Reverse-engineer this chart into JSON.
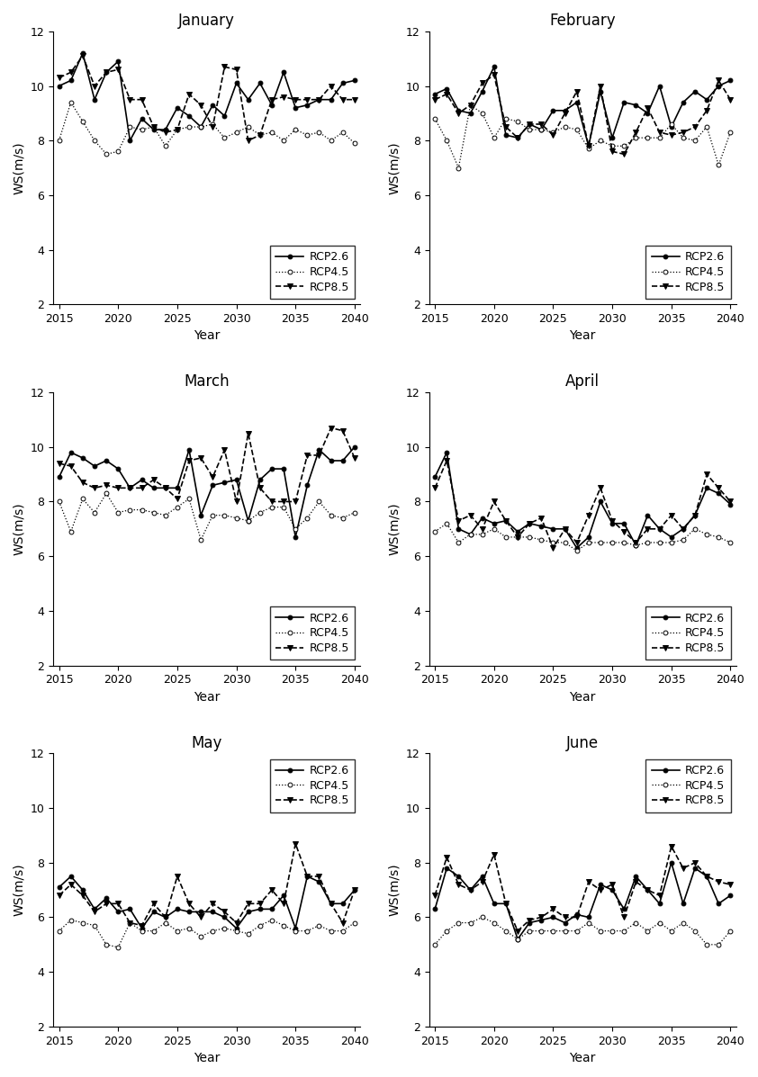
{
  "months": [
    "January",
    "February",
    "March",
    "April",
    "May",
    "June"
  ],
  "years": [
    2015,
    2016,
    2017,
    2018,
    2019,
    2020,
    2021,
    2022,
    2023,
    2024,
    2025,
    2026,
    2027,
    2028,
    2029,
    2030,
    2031,
    2032,
    2033,
    2034,
    2035,
    2036,
    2037,
    2038,
    2039,
    2040
  ],
  "data": {
    "January": {
      "RCP2.6": [
        10.0,
        10.2,
        11.2,
        9.5,
        10.5,
        10.9,
        8.0,
        8.8,
        8.4,
        8.4,
        9.2,
        8.9,
        8.5,
        9.3,
        8.9,
        10.1,
        9.5,
        10.1,
        9.3,
        10.5,
        9.2,
        9.3,
        9.5,
        9.5,
        10.1,
        10.2
      ],
      "RCP4.5": [
        8.0,
        9.4,
        8.7,
        8.0,
        7.5,
        7.6,
        8.5,
        8.4,
        8.5,
        7.8,
        8.4,
        8.5,
        8.5,
        8.6,
        8.1,
        8.3,
        8.5,
        8.2,
        8.3,
        8.0,
        8.4,
        8.2,
        8.3,
        8.0,
        8.3,
        7.9
      ],
      "RCP8.5": [
        10.3,
        10.5,
        11.1,
        10.0,
        10.5,
        10.6,
        9.5,
        9.5,
        8.5,
        8.3,
        8.4,
        9.7,
        9.3,
        8.5,
        10.7,
        10.6,
        8.0,
        8.2,
        9.5,
        9.6,
        9.5,
        9.5,
        9.5,
        10.0,
        9.5,
        9.5
      ]
    },
    "February": {
      "RCP2.6": [
        9.7,
        9.9,
        9.1,
        9.0,
        9.8,
        10.7,
        8.2,
        8.1,
        8.6,
        8.4,
        9.1,
        9.1,
        9.4,
        7.8,
        9.8,
        8.1,
        9.4,
        9.3,
        9.0,
        10.0,
        8.5,
        9.4,
        9.8,
        9.5,
        10.0,
        10.2
      ],
      "RCP4.5": [
        8.8,
        8.0,
        7.0,
        9.3,
        9.0,
        8.1,
        8.8,
        8.7,
        8.4,
        8.4,
        8.3,
        8.5,
        8.4,
        7.7,
        8.0,
        7.8,
        7.8,
        8.1,
        8.1,
        8.1,
        8.6,
        8.1,
        8.0,
        8.5,
        7.1,
        8.3
      ],
      "RCP8.5": [
        9.5,
        9.7,
        9.0,
        9.3,
        10.1,
        10.4,
        8.5,
        8.1,
        8.6,
        8.6,
        8.2,
        9.0,
        9.8,
        7.8,
        10.0,
        7.6,
        7.5,
        8.3,
        9.2,
        8.3,
        8.2,
        8.3,
        8.5,
        9.1,
        10.2,
        9.5
      ]
    },
    "March": {
      "RCP2.6": [
        8.9,
        9.8,
        9.6,
        9.3,
        9.5,
        9.2,
        8.5,
        8.8,
        8.5,
        8.5,
        8.5,
        9.9,
        7.5,
        8.6,
        8.7,
        8.8,
        7.3,
        8.8,
        9.2,
        9.2,
        6.7,
        8.6,
        9.9,
        9.5,
        9.5,
        10.0
      ],
      "RCP4.5": [
        8.0,
        6.9,
        8.1,
        7.6,
        8.3,
        7.6,
        7.7,
        7.7,
        7.6,
        7.5,
        7.8,
        8.1,
        6.6,
        7.5,
        7.5,
        7.4,
        7.3,
        7.6,
        7.8,
        7.8,
        7.0,
        7.4,
        8.0,
        7.5,
        7.4,
        7.6
      ],
      "RCP8.5": [
        9.4,
        9.3,
        8.7,
        8.5,
        8.6,
        8.5,
        8.5,
        8.5,
        8.8,
        8.5,
        8.1,
        9.5,
        9.6,
        8.9,
        9.9,
        8.0,
        10.5,
        8.5,
        8.0,
        8.0,
        8.0,
        9.7,
        9.7,
        10.7,
        10.6,
        9.6
      ]
    },
    "April": {
      "RCP2.6": [
        8.9,
        9.8,
        7.0,
        6.8,
        7.4,
        7.2,
        7.3,
        6.9,
        7.2,
        7.1,
        7.0,
        7.0,
        6.3,
        6.7,
        8.0,
        7.2,
        7.2,
        6.4,
        7.5,
        7.0,
        6.7,
        7.0,
        7.5,
        8.5,
        8.3,
        7.9
      ],
      "RCP4.5": [
        6.9,
        7.2,
        6.5,
        6.8,
        6.8,
        7.0,
        6.7,
        6.7,
        6.7,
        6.6,
        6.5,
        6.5,
        6.2,
        6.5,
        6.5,
        6.5,
        6.5,
        6.4,
        6.5,
        6.5,
        6.5,
        6.6,
        7.0,
        6.8,
        6.7,
        6.5
      ],
      "RCP8.5": [
        8.5,
        9.5,
        7.3,
        7.5,
        7.0,
        8.0,
        7.3,
        6.7,
        7.2,
        7.4,
        6.3,
        7.0,
        6.5,
        7.5,
        8.5,
        7.3,
        6.9,
        6.5,
        7.0,
        7.0,
        7.5,
        7.0,
        7.5,
        9.0,
        8.5,
        8.0
      ]
    },
    "May": {
      "RCP2.6": [
        7.1,
        7.5,
        7.0,
        6.3,
        6.7,
        6.2,
        6.3,
        5.6,
        6.2,
        6.0,
        6.3,
        6.2,
        6.2,
        6.2,
        6.0,
        5.6,
        6.2,
        6.3,
        6.3,
        6.8,
        5.6,
        7.5,
        7.3,
        6.5,
        6.5,
        7.0
      ],
      "RCP4.5": [
        5.5,
        5.9,
        5.8,
        5.7,
        5.0,
        4.9,
        5.8,
        5.5,
        5.5,
        5.8,
        5.5,
        5.6,
        5.3,
        5.5,
        5.6,
        5.5,
        5.4,
        5.7,
        5.9,
        5.7,
        5.5,
        5.5,
        5.7,
        5.5,
        5.5,
        5.8
      ],
      "RCP8.5": [
        6.8,
        7.2,
        6.8,
        6.2,
        6.5,
        6.5,
        5.8,
        5.7,
        6.5,
        6.0,
        7.5,
        6.5,
        6.0,
        6.5,
        6.2,
        5.8,
        6.5,
        6.5,
        7.0,
        6.5,
        8.7,
        7.5,
        7.5,
        6.5,
        5.8,
        7.0
      ]
    },
    "June": {
      "RCP2.6": [
        6.3,
        7.8,
        7.5,
        7.0,
        7.5,
        6.5,
        6.5,
        5.2,
        5.8,
        5.9,
        6.0,
        5.8,
        6.1,
        6.0,
        7.2,
        7.0,
        6.3,
        7.5,
        7.0,
        6.5,
        8.0,
        6.5,
        7.8,
        7.5,
        6.5,
        6.8
      ],
      "RCP4.5": [
        5.0,
        5.5,
        5.8,
        5.8,
        6.0,
        5.8,
        5.5,
        5.2,
        5.5,
        5.5,
        5.5,
        5.5,
        5.5,
        5.8,
        5.5,
        5.5,
        5.5,
        5.8,
        5.5,
        5.8,
        5.5,
        5.8,
        5.5,
        5.0,
        5.0,
        5.5
      ],
      "RCP8.5": [
        6.8,
        8.2,
        7.2,
        7.0,
        7.3,
        8.3,
        6.5,
        5.5,
        5.9,
        6.0,
        6.3,
        6.0,
        6.0,
        7.3,
        7.0,
        7.2,
        6.0,
        7.3,
        7.0,
        6.8,
        8.6,
        7.8,
        8.0,
        7.5,
        7.3,
        7.2
      ]
    }
  },
  "ylim": [
    2,
    12
  ],
  "yticks": [
    2,
    4,
    6,
    8,
    10,
    12
  ],
  "xlim": [
    2014.5,
    2040.5
  ],
  "xticks": [
    2015,
    2020,
    2025,
    2030,
    2035,
    2040
  ],
  "xlabel": "Year",
  "ylabel": "WS(m/s)",
  "legend_labels": [
    "RCP2.6",
    "RCP4.5",
    "RCP8.5"
  ],
  "legend_locs": [
    "lower right",
    "lower right",
    "lower right",
    "lower right",
    "upper right",
    "upper right"
  ],
  "line_styles": [
    "-",
    ":",
    "--"
  ],
  "markers": [
    "o",
    "o",
    "v"
  ],
  "marker_fills": [
    "black",
    "white",
    "black"
  ],
  "colors": [
    "black",
    "black",
    "black"
  ],
  "linewidths": [
    1.2,
    0.9,
    1.2
  ],
  "markersizes": [
    3.5,
    3.5,
    4.5
  ],
  "title_fontsize": 12,
  "label_fontsize": 10,
  "tick_fontsize": 9,
  "legend_fontsize": 9
}
